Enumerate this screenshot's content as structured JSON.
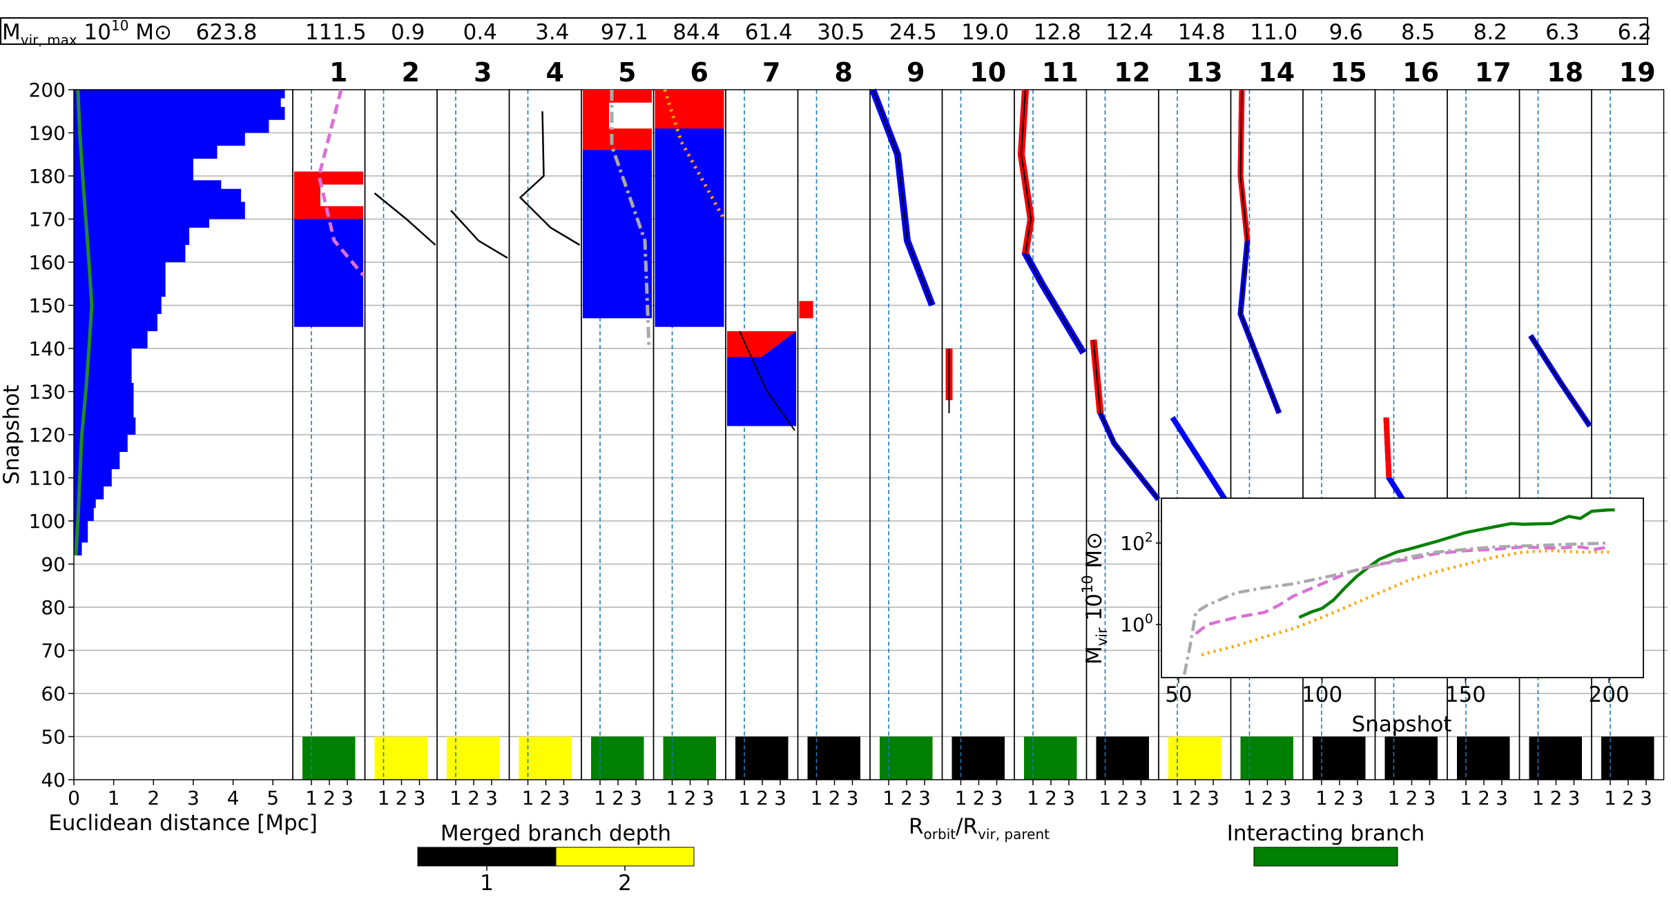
{
  "chart_data": {
    "type": "multi-panel",
    "figure_ylabel": "Snapshot",
    "y_ticks": [
      40,
      50,
      60,
      70,
      80,
      90,
      100,
      110,
      120,
      130,
      140,
      150,
      160,
      170,
      180,
      190,
      200
    ],
    "ylim": [
      40,
      200
    ],
    "header": {
      "label_main": "M",
      "label_sub": "vir, max",
      "label_unit_pre": " 10",
      "label_unit_exp": "10",
      "label_unit_post": " M⊙",
      "values": [
        "623.8",
        "111.5",
        "0.9",
        "0.4",
        "3.4",
        "97.1",
        "84.4",
        "61.4",
        "30.5",
        "24.5",
        "19.0",
        "12.8",
        "12.4",
        "14.8",
        "11.0",
        "9.6",
        "8.5",
        "8.2",
        "6.3",
        "6.2"
      ]
    },
    "main_panel": {
      "xlabel": "Euclidean distance [Mpc]",
      "x_ticks": [
        "0",
        "1",
        "2",
        "3",
        "4",
        "5"
      ],
      "xlim": [
        0,
        5.5
      ],
      "envelope_snapshots": [
        92,
        95,
        100,
        103,
        105,
        108,
        112,
        116,
        120,
        124,
        128,
        132,
        136,
        140,
        144,
        148,
        152,
        156,
        160,
        164,
        168,
        170,
        174,
        177,
        179,
        182,
        184,
        187,
        190,
        193,
        196,
        198,
        200
      ],
      "envelope_mpc": [
        0.1,
        0.2,
        0.35,
        0.5,
        0.55,
        0.75,
        0.95,
        1.15,
        1.35,
        1.55,
        1.5,
        1.5,
        1.45,
        1.45,
        1.85,
        2.1,
        2.2,
        2.3,
        2.3,
        2.8,
        2.9,
        3.4,
        4.3,
        4.2,
        3.7,
        3.0,
        3.0,
        3.6,
        4.3,
        4.9,
        5.3,
        5.2,
        5.3
      ],
      "median_snapshots": [
        92,
        100,
        110,
        120,
        130,
        140,
        150,
        160,
        170,
        180,
        190,
        200
      ],
      "median_mpc": [
        0.05,
        0.1,
        0.15,
        0.2,
        0.3,
        0.38,
        0.45,
        0.38,
        0.3,
        0.22,
        0.15,
        0.1
      ]
    },
    "subpanels": {
      "x_ticks": [
        "1",
        "2",
        "3"
      ],
      "xlabel": "R",
      "xlabel_sub": "orbit",
      "xlabel_mid": "/R",
      "xlabel_sub2": "vir, parent",
      "items": [
        {
          "title": "1",
          "category": "interacting"
        },
        {
          "title": "2",
          "category": "depth2"
        },
        {
          "title": "3",
          "category": "depth2"
        },
        {
          "title": "4",
          "category": "depth2"
        },
        {
          "title": "5",
          "category": "interacting"
        },
        {
          "title": "6",
          "category": "interacting"
        },
        {
          "title": "7",
          "category": "depth1"
        },
        {
          "title": "8",
          "category": "depth1"
        },
        {
          "title": "9",
          "category": "interacting"
        },
        {
          "title": "10",
          "category": "depth1"
        },
        {
          "title": "11",
          "category": "interacting"
        },
        {
          "title": "12",
          "category": "depth1"
        },
        {
          "title": "13",
          "category": "depth2"
        },
        {
          "title": "14",
          "category": "interacting"
        },
        {
          "title": "15",
          "category": "depth1"
        },
        {
          "title": "16",
          "category": "depth1"
        },
        {
          "title": "17",
          "category": "depth1"
        },
        {
          "title": "18",
          "category": "depth1"
        },
        {
          "title": "19",
          "category": "depth1"
        }
      ]
    },
    "legend_depth": {
      "title": "Merged branch depth",
      "labels": [
        "1",
        "2"
      ],
      "colors": [
        "#000000",
        "#ffff00"
      ]
    },
    "legend_interacting": {
      "title": "Interacting branch",
      "color": "#008000"
    },
    "inset": {
      "type": "line",
      "scale": "log-y",
      "xlabel": "Snapshot",
      "ylabel_main": "M",
      "ylabel_sub": "vir",
      "ylabel_unit_pre": " 10",
      "ylabel_unit_exp": "10",
      "ylabel_unit_post": " M⊙",
      "x_ticks": [
        "50",
        "100",
        "150",
        "200"
      ],
      "y_tick_base": "10",
      "y_tick_exps": [
        "0",
        "2"
      ],
      "series": [
        {
          "name": "main",
          "color": "#008000",
          "style": "solid",
          "x": [
            92,
            96,
            100,
            104,
            108,
            112,
            116,
            120,
            126,
            130,
            140,
            150,
            160,
            166,
            170,
            180,
            186,
            190,
            194,
            200,
            202
          ],
          "y": [
            1.5,
            2,
            2.5,
            4,
            8,
            15,
            25,
            40,
            60,
            70,
            110,
            180,
            250,
            300,
            290,
            300,
            450,
            400,
            600,
            650,
            650
          ]
        },
        {
          "name": "branch-1",
          "color": "#da70d6",
          "style": "dashed",
          "x": [
            56,
            60,
            70,
            80,
            85,
            90,
            100,
            110,
            120,
            130,
            140,
            150,
            160,
            170,
            180,
            190,
            195,
            200
          ],
          "y": [
            0.6,
            1,
            1.5,
            2,
            3,
            5,
            10,
            20,
            30,
            40,
            55,
            65,
            70,
            80,
            75,
            80,
            70,
            80
          ]
        },
        {
          "name": "branch-5",
          "color": "#a9a9a9",
          "style": "dashdot",
          "x": [
            52,
            54,
            56,
            60,
            70,
            80,
            90,
            100,
            110,
            120,
            130,
            140,
            150,
            160,
            170,
            180,
            190,
            200
          ],
          "y": [
            0.06,
            0.3,
            2,
            3,
            6,
            8,
            10,
            14,
            20,
            30,
            45,
            60,
            70,
            80,
            85,
            90,
            95,
            100
          ]
        },
        {
          "name": "branch-6",
          "color": "#ffa500",
          "style": "dotted",
          "x": [
            58,
            60,
            70,
            80,
            90,
            100,
            110,
            120,
            130,
            140,
            150,
            160,
            170,
            180,
            190,
            200
          ],
          "y": [
            0.18,
            0.2,
            0.3,
            0.5,
            0.8,
            1.5,
            3,
            6,
            12,
            20,
            30,
            45,
            60,
            65,
            60,
            60
          ]
        }
      ]
    }
  }
}
